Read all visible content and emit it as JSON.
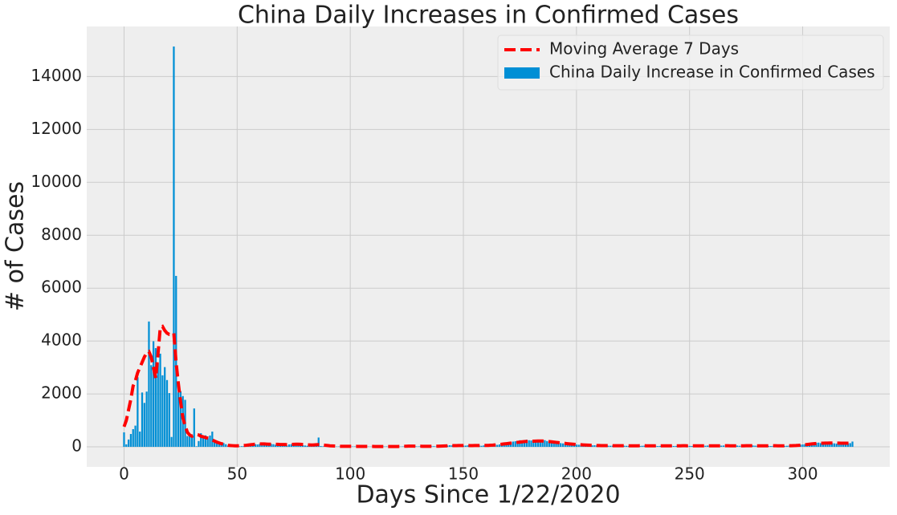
{
  "chart_data": {
    "type": "bar",
    "title": "China Daily Increases in Confirmed Cases",
    "xlabel": "Days Since 1/22/2020",
    "ylabel": "# of Cases",
    "x": [
      0,
      1,
      2,
      3,
      4,
      5,
      6,
      7,
      8,
      9,
      10,
      11,
      12,
      13,
      14,
      15,
      16,
      17,
      18,
      19,
      20,
      21,
      22,
      23,
      24,
      25,
      26,
      27,
      28,
      29,
      30,
      31,
      32,
      33,
      34,
      35,
      36,
      37,
      38,
      39,
      40,
      41,
      42,
      43,
      44,
      45,
      46,
      47,
      48,
      49,
      50,
      51,
      52,
      53,
      54,
      55,
      56,
      57,
      58,
      59,
      60,
      61,
      62,
      63,
      64,
      65,
      66,
      67,
      68,
      69,
      70,
      71,
      72,
      73,
      74,
      75,
      76,
      77,
      78,
      79,
      80,
      81,
      82,
      83,
      84,
      85,
      86,
      87,
      88,
      89,
      90,
      91,
      92,
      93,
      94,
      95,
      96,
      97,
      98,
      99,
      100,
      101,
      102,
      103,
      104,
      105,
      106,
      107,
      108,
      109,
      110,
      111,
      112,
      113,
      114,
      115,
      116,
      117,
      118,
      119,
      120,
      121,
      122,
      123,
      124,
      125,
      126,
      127,
      128,
      129,
      130,
      131,
      132,
      133,
      134,
      135,
      136,
      137,
      138,
      139,
      140,
      141,
      142,
      143,
      144,
      145,
      146,
      147,
      148,
      149,
      150,
      151,
      152,
      153,
      154,
      155,
      156,
      157,
      158,
      159,
      160,
      161,
      162,
      163,
      164,
      165,
      166,
      167,
      168,
      169,
      170,
      171,
      172,
      173,
      174,
      175,
      176,
      177,
      178,
      179,
      180,
      181,
      182,
      183,
      184,
      185,
      186,
      187,
      188,
      189,
      190,
      191,
      192,
      193,
      194,
      195,
      196,
      197,
      198,
      199,
      200,
      201,
      202,
      203,
      204,
      205,
      206,
      207,
      208,
      209,
      210,
      211,
      212,
      213,
      214,
      215,
      216,
      217,
      218,
      219,
      220,
      221,
      222,
      223,
      224,
      225,
      226,
      227,
      228,
      229,
      230,
      231,
      232,
      233,
      234,
      235,
      236,
      237,
      238,
      239,
      240,
      241,
      242,
      243,
      244,
      245,
      246,
      247,
      248,
      249,
      250,
      251,
      252,
      253,
      254,
      255,
      256,
      257,
      258,
      259,
      260,
      261,
      262,
      263,
      264,
      265,
      266,
      267,
      268,
      269,
      270,
      271,
      272,
      273,
      274,
      275,
      276,
      277,
      278,
      279,
      280,
      281,
      282,
      283,
      284,
      285,
      286,
      287,
      288,
      289,
      290,
      291,
      292,
      293,
      294,
      295,
      296,
      297,
      298,
      299,
      300,
      301,
      302,
      303,
      304,
      305,
      306,
      307,
      308,
      309,
      310,
      311,
      312,
      313,
      314,
      315,
      316,
      317,
      318,
      319,
      320,
      321,
      322
    ],
    "series": [
      {
        "name": "Moving Average 7 Days",
        "type": "line",
        "color": "#ff0000",
        "dashed": true,
        "values": [
          760,
          1000,
          1400,
          1800,
          2300,
          2500,
          2800,
          3000,
          3200,
          3400,
          3550,
          3600,
          3400,
          3000,
          2600,
          3500,
          4500,
          4550,
          4400,
          4300,
          4250,
          4250,
          4300,
          3200,
          2400,
          1700,
          1100,
          800,
          550,
          450,
          400,
          430,
          470,
          450,
          400,
          380,
          350,
          330,
          300,
          260,
          220,
          180,
          150,
          120,
          100,
          80,
          60,
          50,
          45,
          40,
          40,
          45,
          50,
          55,
          60,
          70,
          80,
          90,
          100,
          105,
          110,
          110,
          110,
          105,
          100,
          100,
          100,
          95,
          95,
          90,
          90,
          90,
          85,
          85,
          90,
          95,
          100,
          100,
          95,
          90,
          85,
          80,
          75,
          70,
          75,
          80,
          85,
          80,
          70,
          60,
          50,
          40,
          35,
          30,
          25,
          22,
          20,
          20,
          20,
          20,
          20,
          20,
          19,
          18,
          18,
          17,
          17,
          16,
          16,
          15,
          15,
          14,
          14,
          13,
          13,
          13,
          12,
          12,
          12,
          13,
          13,
          14,
          15,
          18,
          22,
          25,
          28,
          28,
          26,
          24,
          22,
          22,
          21,
          21,
          20,
          20,
          20,
          21,
          22,
          24,
          26,
          30,
          34,
          38,
          42,
          45,
          47,
          48,
          49,
          50,
          50,
          50,
          49,
          48,
          48,
          49,
          50,
          51,
          52,
          53,
          54,
          56,
          60,
          65,
          72,
          80,
          90,
          100,
          110,
          120,
          130,
          140,
          150,
          160,
          170,
          180,
          190,
          200,
          205,
          210,
          212,
          215,
          218,
          220,
          222,
          220,
          215,
          210,
          200,
          190,
          180,
          170,
          160,
          150,
          140,
          130,
          120,
          112,
          105,
          98,
          92,
          86,
          80,
          75,
          70,
          66,
          62,
          58,
          55,
          52,
          50,
          48,
          47,
          46,
          45,
          44,
          43,
          43,
          42,
          42,
          42,
          42,
          41,
          41,
          40,
          40,
          41,
          41,
          42,
          42,
          42,
          41,
          40,
          40,
          39,
          39,
          40,
          40,
          41,
          41,
          41,
          40,
          40,
          40,
          39,
          40,
          41,
          42,
          42,
          41,
          40,
          39,
          39,
          40,
          40,
          41,
          41,
          41,
          40,
          40,
          39,
          39,
          40,
          40,
          41,
          41,
          42,
          42,
          41,
          41,
          40,
          40,
          40,
          41,
          41,
          42,
          42,
          42,
          41,
          41,
          40,
          40,
          39,
          39,
          40,
          40,
          41,
          42,
          42,
          41,
          41,
          40,
          40,
          41,
          42,
          44,
          46,
          50,
          56,
          62,
          70,
          80,
          90,
          100,
          110,
          118,
          126,
          132,
          136,
          138,
          140,
          142,
          144,
          145,
          144,
          142,
          140,
          138,
          138,
          137,
          138,
          140,
          142
        ]
      },
      {
        "name": "China Daily Increase in Confirmed Cases",
        "type": "bar",
        "color": "#008fd5",
        "values": [
          548,
          95,
          277,
          486,
          669,
          802,
          2632,
          578,
          2054,
          1661,
          2089,
          4739,
          3086,
          3991,
          3733,
          3147,
          3523,
          2704,
          3015,
          2525,
          2032,
          373,
          15136,
          6463,
          2055,
          2100,
          1921,
          1777,
          408,
          458,
          473,
          1451,
          21,
          219,
          513,
          412,
          434,
          328,
          428,
          576,
          204,
          125,
          119,
          139,
          143,
          99,
          44,
          40,
          19,
          24,
          15,
          20,
          25,
          30,
          40,
          50,
          60,
          80,
          100,
          90,
          110,
          120,
          100,
          80,
          90,
          110,
          100,
          80,
          70,
          60,
          50,
          60,
          50,
          90,
          100,
          120,
          110,
          90,
          80,
          60,
          50,
          40,
          30,
          40,
          60,
          90,
          352,
          30,
          20,
          15,
          12,
          20,
          15,
          10,
          11,
          12,
          6,
          8,
          7,
          5,
          10,
          12,
          14,
          8,
          20,
          15,
          17,
          11,
          9,
          7,
          6,
          4,
          10,
          9,
          5,
          12,
          14,
          6,
          8,
          10,
          4,
          7,
          9,
          12,
          25,
          30,
          40,
          35,
          20,
          18,
          15,
          22,
          25,
          30,
          18,
          12,
          20,
          25,
          14,
          19,
          16,
          30,
          45,
          50,
          60,
          55,
          40,
          48,
          52,
          36,
          44,
          46,
          55,
          38,
          42,
          50,
          60,
          45,
          40,
          52,
          58,
          55,
          62,
          70,
          80,
          75,
          90,
          110,
          130,
          150,
          160,
          180,
          200,
          210,
          230,
          250,
          240,
          260,
          270,
          250,
          240,
          230,
          220,
          210,
          240,
          260,
          250,
          220,
          200,
          190,
          180,
          170,
          150,
          140,
          130,
          120,
          110,
          100,
          90,
          95,
          85,
          80,
          75,
          70,
          65,
          60,
          58,
          55,
          60,
          52,
          50,
          48,
          45,
          50,
          42,
          40,
          45,
          38,
          44,
          46,
          40,
          42,
          38,
          35,
          40,
          45,
          50,
          36,
          32,
          40,
          44,
          38,
          42,
          46,
          40,
          35,
          30,
          34,
          38,
          42,
          45,
          40,
          36,
          30,
          34,
          44,
          48,
          50,
          42,
          38,
          35,
          32,
          40,
          45,
          38,
          30,
          36,
          42,
          48,
          40,
          34,
          30,
          35,
          40,
          46,
          50,
          42,
          36,
          30,
          38,
          44,
          48,
          40,
          35,
          32,
          38,
          42,
          45,
          50,
          44,
          38,
          36,
          40,
          42,
          38,
          34,
          30,
          36,
          42,
          46,
          40,
          38,
          35,
          40,
          45,
          50,
          55,
          60,
          70,
          80,
          90,
          100,
          110,
          120,
          130,
          140,
          150,
          160,
          140,
          130,
          150,
          160,
          150,
          140,
          130,
          120,
          140,
          150,
          135,
          125,
          130,
          140,
          200
        ]
      }
    ],
    "xlim": [
      -16.5,
      338.5
    ],
    "ylim": [
      -757,
      15893
    ],
    "xticks": [
      0,
      50,
      100,
      150,
      200,
      250,
      300
    ],
    "yticks": [
      0,
      2000,
      4000,
      6000,
      8000,
      10000,
      12000,
      14000
    ],
    "grid": true,
    "legend": "upper right"
  }
}
